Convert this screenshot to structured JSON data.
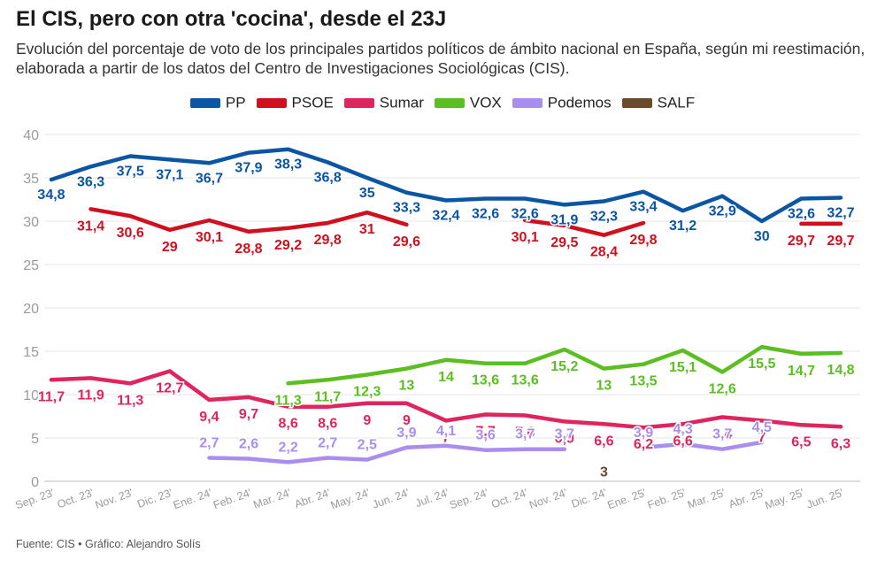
{
  "title": "El CIS, pero con otra 'cocina', desde el 23J",
  "subtitle": "Evolución del porcentaje de voto de los principales partidos políticos de ámbito nacional en España, según mi reestimación, elaborada a partir de los datos del Centro de Investigaciones Sociológicas (CIS).",
  "source": "Fuente: CIS • Gráfico: Alejandro Solís",
  "chart_data": {
    "type": "line",
    "title": "El CIS, pero con otra 'cocina', desde el 23J",
    "xlabel": "",
    "ylabel": "",
    "ylim": [
      0,
      40
    ],
    "yticks": [
      0,
      5,
      10,
      15,
      20,
      25,
      30,
      35,
      40
    ],
    "grid": true,
    "legend_position": "top-center",
    "categories": [
      "Sep. 23'",
      "Oct. 23'",
      "Nov. 23'",
      "Dic. 23'",
      "Ene. 24'",
      "Feb. 24'",
      "Mar. 24'",
      "Abr. 24'",
      "May. 24'",
      "Jun. 24'",
      "Jul. 24'",
      "Sep. 24'",
      "Oct. 24'",
      "Nov. 24'",
      "Dic. 24'",
      "Ene. 25'",
      "Feb. 25'",
      "Mar. 25'",
      "Abr. 25'",
      "May. 25'",
      "Jun. 25'"
    ],
    "series": [
      {
        "name": "PP",
        "color": "#0b55a5",
        "values": [
          34.8,
          36.3,
          37.5,
          37.1,
          36.7,
          37.9,
          38.3,
          36.8,
          35,
          33.3,
          32.4,
          32.6,
          32.6,
          31.9,
          32.3,
          33.4,
          31.2,
          32.9,
          30,
          32.6,
          32.7
        ]
      },
      {
        "name": "PSOE",
        "color": "#d0101f",
        "values": [
          null,
          31.4,
          30.6,
          29,
          30.1,
          28.8,
          29.2,
          29.8,
          31,
          29.6,
          null,
          null,
          30.1,
          29.5,
          28.4,
          29.8,
          null,
          null,
          null,
          29.7,
          29.7
        ]
      },
      {
        "name": "Sumar",
        "color": "#e0245e",
        "values": [
          11.7,
          11.9,
          11.3,
          12.7,
          9.4,
          9.7,
          8.6,
          8.6,
          9,
          9,
          7,
          7.7,
          7.6,
          6.9,
          6.6,
          6.2,
          6.6,
          7.4,
          7,
          6.5,
          6.3
        ]
      },
      {
        "name": "VOX",
        "color": "#5bbf21",
        "values": [
          null,
          null,
          null,
          null,
          null,
          null,
          11.3,
          11.7,
          12.3,
          13,
          14,
          13.6,
          13.6,
          15.2,
          13,
          13.5,
          15.1,
          12.6,
          15.5,
          14.7,
          14.8
        ]
      },
      {
        "name": "Podemos",
        "color": "#a98ef0",
        "values": [
          null,
          null,
          null,
          null,
          2.7,
          2.6,
          2.2,
          2.7,
          2.5,
          3.9,
          4.1,
          3.6,
          3.7,
          3.7,
          null,
          3.9,
          4.3,
          3.7,
          4.5,
          null,
          null
        ]
      },
      {
        "name": "SALF",
        "color": "#6b4a2c",
        "values": [
          null,
          null,
          null,
          null,
          null,
          null,
          null,
          null,
          null,
          null,
          null,
          null,
          null,
          null,
          3,
          null,
          null,
          null,
          null,
          null,
          null
        ]
      }
    ]
  }
}
